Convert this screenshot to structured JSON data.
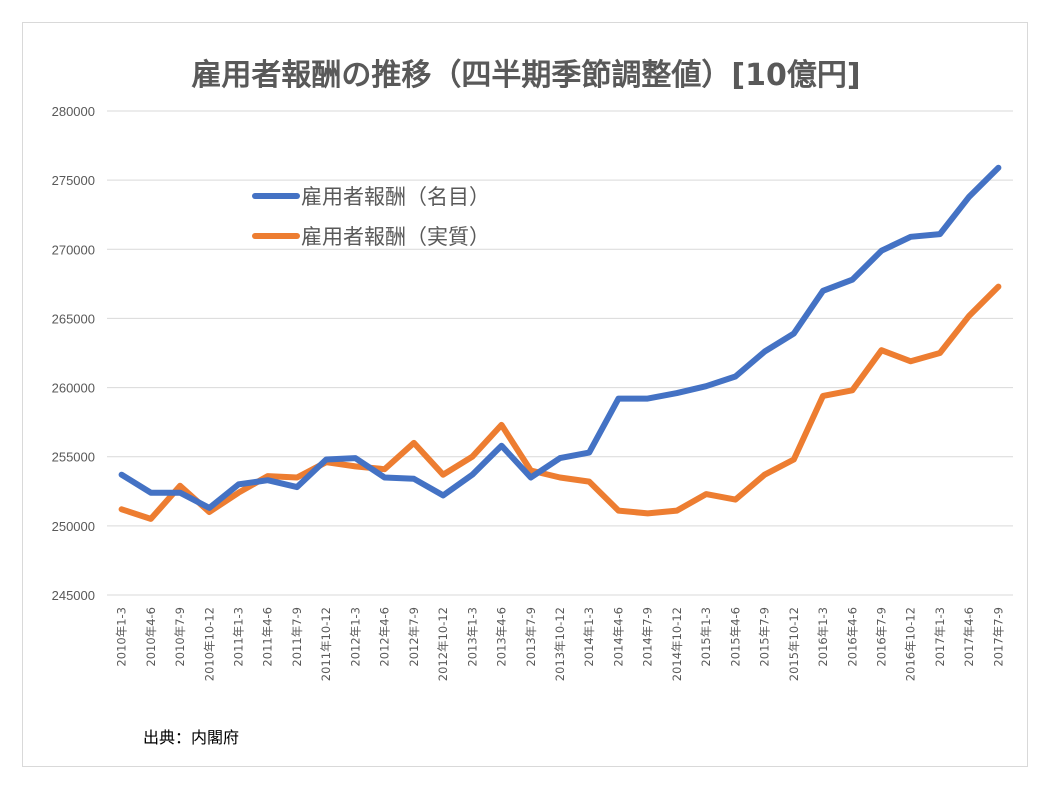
{
  "chart_data": {
    "type": "line",
    "title": "雇用者報酬の推移（四半期季節調整値）[10億円]",
    "source": "出典：内閣府",
    "ylim": [
      245000,
      280000
    ],
    "yticks": [
      "245000",
      "250000",
      "255000",
      "260000",
      "265000",
      "270000",
      "275000",
      "280000"
    ],
    "grid": true,
    "legend_position": "upper-left",
    "categories": [
      "2010年1-3",
      "2010年4-6",
      "2010年7-9",
      "2010年10-12",
      "2011年1-3",
      "2011年4-6",
      "2011年7-9",
      "2011年10-12",
      "2012年1-3",
      "2012年4-6",
      "2012年7-9",
      "2012年10-12",
      "2013年1-3",
      "2013年4-6",
      "2013年7-9",
      "2013年10-12",
      "2014年1-3",
      "2014年4-6",
      "2014年7-9",
      "2014年10-12",
      "2015年1-3",
      "2015年4-6",
      "2015年7-9",
      "2015年10-12",
      "2016年1-3",
      "2016年4-6",
      "2016年7-9",
      "2016年10-12",
      "2017年1-3",
      "2017年4-6",
      "2017年7-9"
    ],
    "series": [
      {
        "name": "雇用者報酬（名目）",
        "color": "#4472c4",
        "values": [
          253700,
          252400,
          252400,
          251300,
          253000,
          253300,
          252800,
          254800,
          254900,
          253500,
          253400,
          252200,
          253700,
          255800,
          253500,
          254900,
          255300,
          259200,
          259200,
          259600,
          260100,
          260800,
          262600,
          263900,
          267000,
          267800,
          269900,
          270900,
          271100,
          273800,
          275900
        ]
      },
      {
        "name": "雇用者報酬（実質）",
        "color": "#ed7d31",
        "values": [
          251200,
          250500,
          252900,
          251000,
          252400,
          253600,
          253500,
          254600,
          254300,
          254100,
          256000,
          253700,
          255000,
          257300,
          254000,
          253500,
          253200,
          251100,
          250900,
          251100,
          252300,
          251900,
          253700,
          254800,
          259400,
          259800,
          262700,
          261900,
          262500,
          265200,
          267300
        ]
      }
    ]
  }
}
